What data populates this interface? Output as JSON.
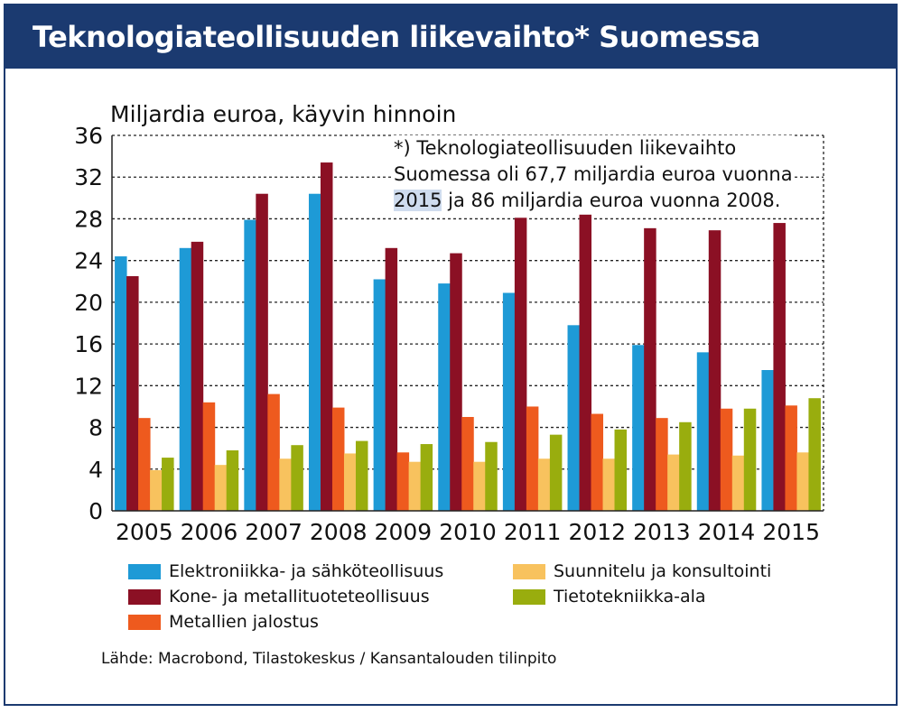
{
  "title": "Teknologiateollisuuden liikevaihto* Suomessa",
  "colors": {
    "header": "#1b3a70",
    "series": [
      "#1e9ad6",
      "#8b1024",
      "#ee5a1e",
      "#f8c25e",
      "#99ad0e"
    ]
  },
  "note": {
    "line1": "*) Teknologiateollisuuden liikevaihto",
    "line2": "Suomessa oli 67,7 miljardia euroa vuonna",
    "line3_highlight": "2015",
    "line3_rest": " ja 86 miljardia euroa vuonna 2008."
  },
  "source": "Lähde: Macrobond, Tilastokeskus / Kansantalouden tilinpito",
  "chart_data": {
    "type": "bar",
    "ylabel": "Miljardia euroa, käyvin hinnoin",
    "ylim": [
      0,
      36
    ],
    "yticks": [
      0,
      4,
      8,
      12,
      16,
      20,
      24,
      28,
      32,
      36
    ],
    "grid": true,
    "legend_position": "bottom",
    "categories": [
      "2005",
      "2006",
      "2007",
      "2008",
      "2009",
      "2010",
      "2011",
      "2012",
      "2013",
      "2014",
      "2015"
    ],
    "series": [
      {
        "name": "Elektroniikka- ja sähköteollisuus",
        "values": [
          24.4,
          25.2,
          27.9,
          30.4,
          22.2,
          21.8,
          20.9,
          17.8,
          15.9,
          15.2,
          13.5
        ]
      },
      {
        "name": "Kone- ja metallituoteteollisuus",
        "values": [
          22.5,
          25.8,
          30.4,
          33.4,
          25.2,
          24.7,
          28.1,
          28.4,
          27.1,
          26.9,
          27.6
        ]
      },
      {
        "name": "Metallien jalostus",
        "values": [
          8.9,
          10.4,
          11.2,
          9.9,
          5.6,
          9.0,
          10.0,
          9.3,
          8.9,
          9.8,
          10.1
        ]
      },
      {
        "name": "Suunnitelu ja konsultointi",
        "values": [
          3.9,
          4.4,
          5.0,
          5.5,
          4.7,
          4.7,
          5.0,
          5.0,
          5.4,
          5.3,
          5.6
        ]
      },
      {
        "name": "Tietotekniikka-ala",
        "values": [
          5.1,
          5.8,
          6.3,
          6.7,
          6.4,
          6.6,
          7.3,
          7.8,
          8.5,
          9.8,
          10.8
        ]
      }
    ]
  }
}
